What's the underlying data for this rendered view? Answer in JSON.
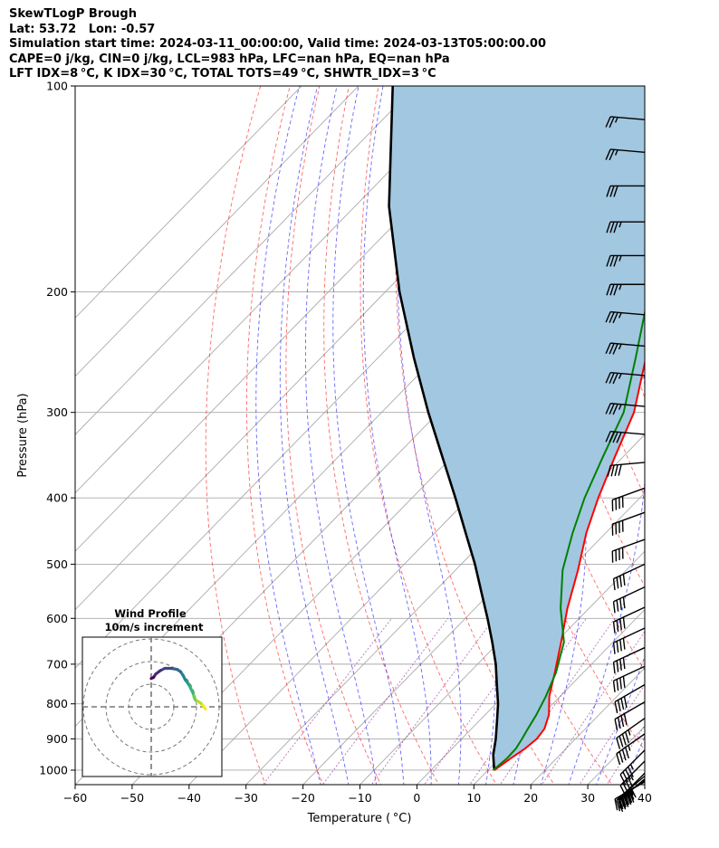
{
  "header": {
    "title": "SkewTLogP Brough",
    "location": "Lat: 53.72   Lon: -0.57",
    "times": "Simulation start time: 2024-03-11_00:00:00, Valid time: 2024-03-13T05:00:00.00",
    "indices1": "CAPE=0 j/kg, CIN=0 j/kg, LCL=983 hPa, LFC=nan hPa, EQ=nan hPa",
    "indices2": "LFT IDX=8 °C, K IDX=30 °C, TOTAL TOTS=49 °C, SHWTR_IDX=3 °C"
  },
  "chart_data": {
    "type": "line",
    "subtype": "skew-T log-P diagram",
    "xlabel": "Temperature ( °C)",
    "ylabel": "Pressure (hPa)",
    "xlim": [
      -60,
      40
    ],
    "plim": [
      1050,
      100
    ],
    "x_ticks": [
      "−60",
      "−50",
      "−40",
      "−30",
      "−20",
      "−10",
      "0",
      "10",
      "20",
      "30",
      "40"
    ],
    "x_tick_values": [
      -60,
      -50,
      -40,
      -30,
      -20,
      -10,
      0,
      10,
      20,
      30,
      40
    ],
    "p_ticks": [
      "1000",
      "900",
      "800",
      "700",
      "600",
      "500",
      "400",
      "300",
      "200",
      "100"
    ],
    "p_tick_values": [
      1000,
      900,
      800,
      700,
      600,
      500,
      400,
      300,
      200,
      100
    ],
    "grid": true,
    "colors": {
      "temperature": "#ff0000",
      "dewpoint": "#008000",
      "parcel": "#000000",
      "fill": "#a2c7e0",
      "dry_adiabats": "#ff0000",
      "moist_adiabats": "#0000ff",
      "mixing_ratio": "#800080",
      "isotherms": "#aaaaaa",
      "isobars": "#aaaaaa"
    },
    "series": [
      {
        "name": "temperature",
        "points": [
          [
            11.1,
            1000
          ],
          [
            12.0,
            960
          ],
          [
            12.8,
            930
          ],
          [
            13.2,
            900
          ],
          [
            12.8,
            870
          ],
          [
            11.2,
            830
          ],
          [
            8.1,
            780
          ],
          [
            5.0,
            720
          ],
          [
            0.9,
            650
          ],
          [
            -3.8,
            580
          ],
          [
            -8.5,
            510
          ],
          [
            -13.4,
            450
          ],
          [
            -17.3,
            400
          ],
          [
            -21.3,
            350
          ],
          [
            -25.7,
            300
          ],
          [
            -32.9,
            250
          ],
          [
            -40.8,
            200
          ],
          [
            -42.0,
            190
          ],
          [
            -43.5,
            180
          ],
          [
            -46.6,
            170
          ],
          [
            -49.7,
            160
          ],
          [
            -49.2,
            150
          ],
          [
            -47.6,
            140
          ],
          [
            -47.6,
            130
          ],
          [
            -47.8,
            120
          ],
          [
            -48.8,
            110
          ],
          [
            -50.4,
            100
          ]
        ]
      },
      {
        "name": "dewpoint",
        "points": [
          [
            10.9,
            1000
          ],
          [
            11.3,
            960
          ],
          [
            11.2,
            930
          ],
          [
            10.6,
            900
          ],
          [
            9.9,
            870
          ],
          [
            9.0,
            830
          ],
          [
            7.5,
            780
          ],
          [
            5.2,
            720
          ],
          [
            1.4,
            650
          ],
          [
            -5.0,
            580
          ],
          [
            -11.2,
            510
          ],
          [
            -15.8,
            450
          ],
          [
            -19.7,
            400
          ],
          [
            -23.4,
            350
          ],
          [
            -27.5,
            300
          ],
          [
            -34.7,
            250
          ],
          [
            -43.7,
            200
          ],
          [
            -46.0,
            190
          ],
          [
            -48.5,
            180
          ],
          [
            -51.7,
            170
          ],
          [
            -53.5,
            160
          ],
          [
            -56.8,
            150
          ],
          [
            -60.4,
            140
          ],
          [
            -63.3,
            130
          ],
          [
            -62.5,
            120
          ],
          [
            -60.0,
            110
          ],
          [
            -57.8,
            100
          ]
        ]
      },
      {
        "name": "parcel",
        "points": [
          [
            11.1,
            1000
          ],
          [
            9.7,
            975
          ],
          [
            8.3,
            950
          ],
          [
            6.0,
            900
          ],
          [
            3.3,
            850
          ],
          [
            0.4,
            800
          ],
          [
            -3.1,
            750
          ],
          [
            -6.8,
            700
          ],
          [
            -11.2,
            650
          ],
          [
            -16.1,
            600
          ],
          [
            -21.6,
            550
          ],
          [
            -27.6,
            500
          ],
          [
            -34.6,
            450
          ],
          [
            -42.4,
            400
          ],
          [
            -51.4,
            350
          ],
          [
            -61.8,
            300
          ],
          [
            -73.6,
            250
          ],
          [
            -87.5,
            200
          ],
          [
            -104.0,
            150
          ],
          [
            -124.0,
            100
          ]
        ]
      }
    ],
    "wind_barbs": [
      {
        "p": 1040,
        "spd": 55,
        "dir": 240
      },
      {
        "p": 1035,
        "spd": 55,
        "dir": 235
      },
      {
        "p": 1030,
        "spd": 50,
        "dir": 230
      },
      {
        "p": 1020,
        "spd": 50,
        "dir": 230
      },
      {
        "p": 1010,
        "spd": 50,
        "dir": 225
      },
      {
        "p": 970,
        "spd": 45,
        "dir": 225
      },
      {
        "p": 935,
        "spd": 45,
        "dir": 225
      },
      {
        "p": 885,
        "spd": 45,
        "dir": 235
      },
      {
        "p": 840,
        "spd": 45,
        "dir": 235
      },
      {
        "p": 795,
        "spd": 40,
        "dir": 240
      },
      {
        "p": 750,
        "spd": 40,
        "dir": 240
      },
      {
        "p": 705,
        "spd": 40,
        "dir": 245
      },
      {
        "p": 662,
        "spd": 40,
        "dir": 245
      },
      {
        "p": 620,
        "spd": 40,
        "dir": 245
      },
      {
        "p": 578,
        "spd": 40,
        "dir": 245
      },
      {
        "p": 540,
        "spd": 40,
        "dir": 245
      },
      {
        "p": 500,
        "spd": 40,
        "dir": 245
      },
      {
        "p": 460,
        "spd": 40,
        "dir": 250
      },
      {
        "p": 420,
        "spd": 40,
        "dir": 250
      },
      {
        "p": 387,
        "spd": 40,
        "dir": 250
      },
      {
        "p": 355,
        "spd": 40,
        "dir": 265
      },
      {
        "p": 323,
        "spd": 40,
        "dir": 275
      },
      {
        "p": 294,
        "spd": 35,
        "dir": 275
      },
      {
        "p": 265,
        "spd": 35,
        "dir": 275
      },
      {
        "p": 240,
        "spd": 35,
        "dir": 275
      },
      {
        "p": 216,
        "spd": 35,
        "dir": 275
      },
      {
        "p": 195,
        "spd": 35,
        "dir": 270
      },
      {
        "p": 177,
        "spd": 35,
        "dir": 270
      },
      {
        "p": 158,
        "spd": 35,
        "dir": 270
      },
      {
        "p": 140,
        "spd": 30,
        "dir": 270
      },
      {
        "p": 125,
        "spd": 25,
        "dir": 275
      },
      {
        "p": 112,
        "spd": 25,
        "dir": 275
      }
    ],
    "hodograph": {
      "title": "Wind Profile",
      "subtitle": "10m/s increment",
      "ring_increment_ms": 10,
      "rings": [
        10,
        20,
        30
      ],
      "trace": [
        [
          24,
          -1
        ],
        [
          23,
          0.5
        ],
        [
          22,
          1.5
        ],
        [
          20.5,
          2.5
        ],
        [
          19.5,
          3
        ],
        [
          19,
          4
        ],
        [
          18.5,
          6
        ],
        [
          17.5,
          8
        ],
        [
          16.5,
          10
        ],
        [
          15,
          12
        ],
        [
          14,
          14
        ],
        [
          13,
          15.5
        ],
        [
          11.5,
          16.5
        ],
        [
          9,
          17
        ],
        [
          6,
          17
        ],
        [
          4,
          16
        ],
        [
          2,
          14.5
        ],
        [
          1,
          13
        ],
        [
          0,
          12.5
        ]
      ],
      "colormap": [
        "#fde725",
        "#b5de2b",
        "#6ece58",
        "#35b779",
        "#1f9e89",
        "#26828e",
        "#31688e",
        "#3e4989",
        "#482878",
        "#440154"
      ]
    }
  }
}
